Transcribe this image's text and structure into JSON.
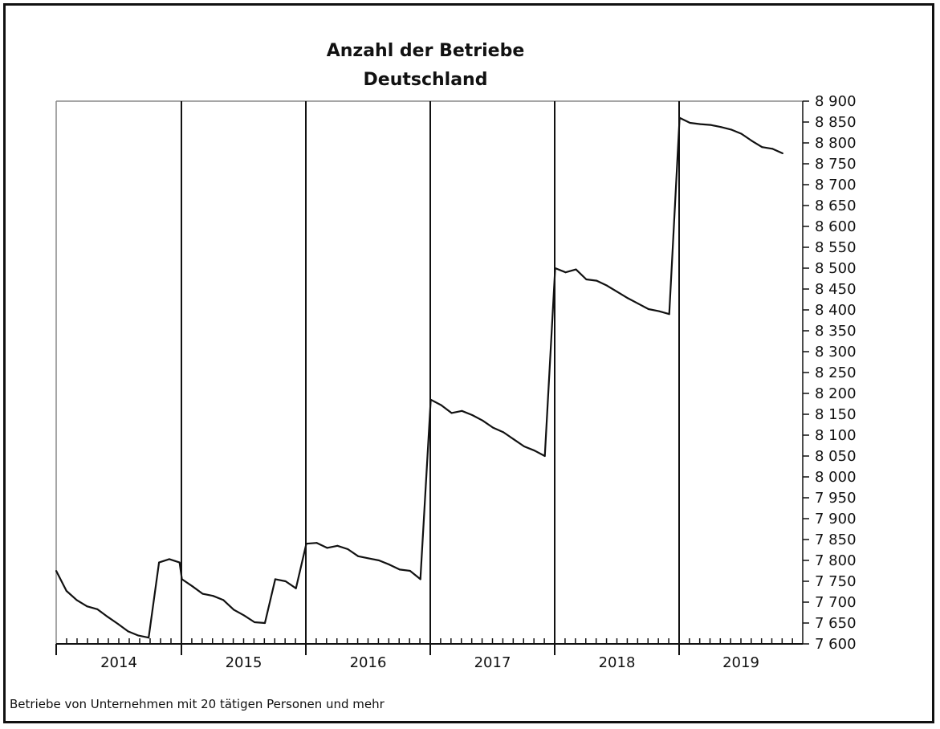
{
  "chart_data": {
    "type": "line",
    "title": "Anzahl der Betriebe",
    "subtitle": "Deutschland",
    "footnote": "Betriebe von Unternehmen mit 20 tätigen Personen und mehr",
    "xlabel": "",
    "ylabel": "",
    "ylim": [
      7600,
      8900
    ],
    "y_ticks": [
      "7 600",
      "7 650",
      "7 700",
      "7 750",
      "7 800",
      "7 850",
      "7 900",
      "7 950",
      "8 000",
      "8 050",
      "8 100",
      "8 150",
      "8 200",
      "8 250",
      "8 300",
      "8 350",
      "8 400",
      "8 450",
      "8 500",
      "8 550",
      "8 600",
      "8 650",
      "8 700",
      "8 750",
      "8 800",
      "8 850",
      "8 900"
    ],
    "y_axis_position": "right",
    "grid": false,
    "legend": "none",
    "colors": {
      "line": "#111111",
      "axis": "#111111",
      "frame": "#888888"
    },
    "years": [
      "2014",
      "2015",
      "2016",
      "2017",
      "2018",
      "2019"
    ],
    "series": [
      {
        "values": [
          [
            7775,
            7727,
            7705,
            7690,
            7683,
            7665,
            7648,
            7630,
            7620,
            7615,
            7795,
            7803,
            7795
          ],
          [
            7755,
            7738,
            7720,
            7715,
            7705,
            7682,
            7668,
            7652,
            7650,
            7755,
            7750,
            7733
          ],
          [
            7840,
            7842,
            7830,
            7835,
            7827,
            7810,
            7805,
            7800,
            7790,
            7778,
            7775,
            7755
          ],
          [
            8185,
            8172,
            8153,
            8158,
            8148,
            8135,
            8118,
            8107,
            8090,
            8073,
            8063,
            8050
          ],
          [
            8500,
            8490,
            8497,
            8473,
            8470,
            8458,
            8443,
            8428,
            8415,
            8402,
            8397,
            8390
          ],
          [
            8860,
            8848,
            8845,
            8843,
            8838,
            8832,
            8822,
            8805,
            8790,
            8786,
            8775
          ]
        ]
      }
    ]
  }
}
